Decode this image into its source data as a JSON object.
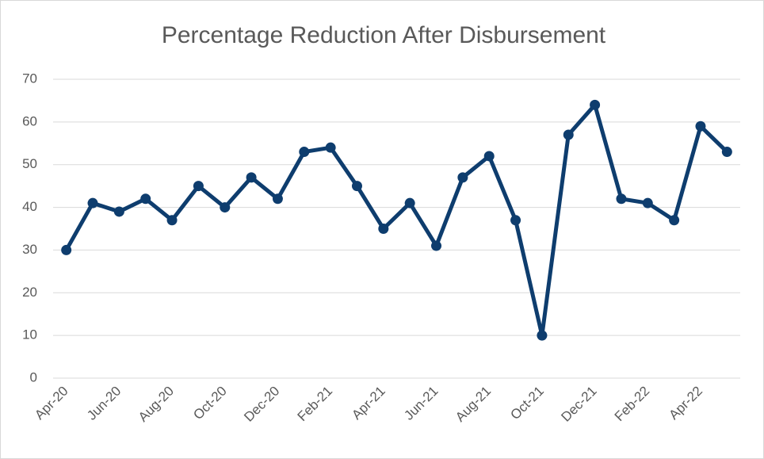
{
  "chart_data": {
    "type": "line",
    "title": "Percentage Reduction After Disbursement",
    "categories": [
      "Apr-20",
      null,
      "Jun-20",
      null,
      "Aug-20",
      null,
      "Oct-20",
      null,
      "Dec-20",
      null,
      "Feb-21",
      null,
      "Apr-21",
      null,
      "Jun-21",
      null,
      "Aug-21",
      null,
      "Oct-21",
      null,
      "Dec-21",
      null,
      "Feb-22",
      null,
      "Apr-22",
      null
    ],
    "series": [
      {
        "name": "Percentage Reduction",
        "color": "#0e3d6e",
        "values": [
          30,
          41,
          39,
          42,
          37,
          45,
          40,
          47,
          42,
          53,
          54,
          45,
          35,
          41,
          31,
          47,
          52,
          37,
          10,
          57,
          64,
          42,
          41,
          37,
          59,
          53
        ]
      }
    ],
    "ylim": [
      0,
      70
    ],
    "yticks": [
      0,
      10,
      20,
      30,
      40,
      50,
      60,
      70
    ],
    "grid": true
  }
}
